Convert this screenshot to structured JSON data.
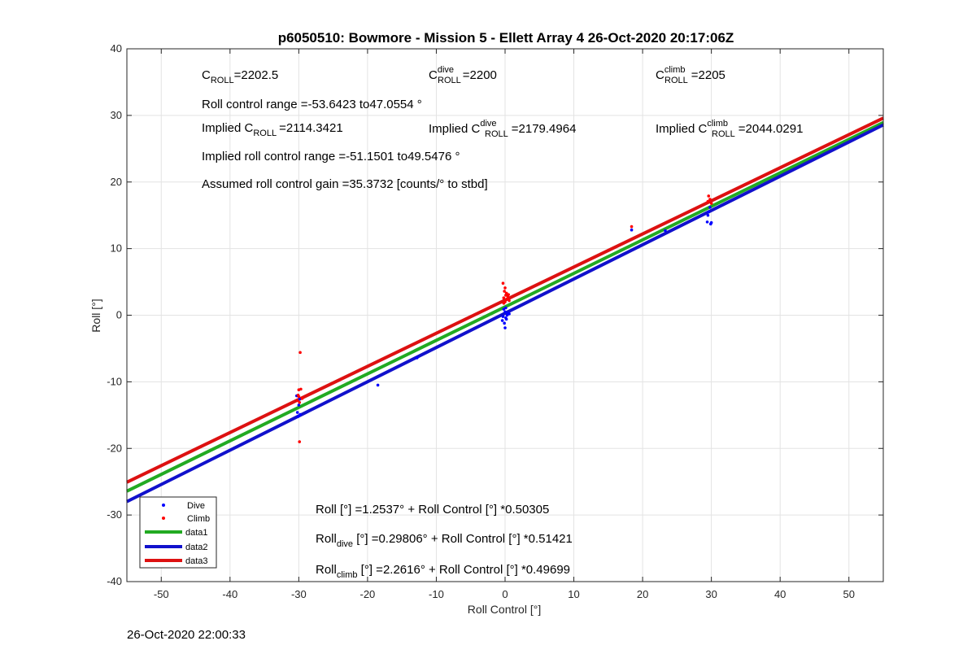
{
  "chart_data": {
    "type": "scatter",
    "title": "p6050510: Bowmore - Mission 5 - Ellett Array 4 26-Oct-2020 20:17:06Z",
    "xlabel": "Roll Control [°]",
    "ylabel": "Roll [°]",
    "xlim": [
      -55,
      55
    ],
    "ylim": [
      -40,
      40
    ],
    "xticks": [
      -50,
      -40,
      -30,
      -20,
      -10,
      0,
      10,
      20,
      30,
      40,
      50
    ],
    "yticks": [
      -40,
      -30,
      -20,
      -10,
      0,
      10,
      20,
      30,
      40
    ],
    "grid": true,
    "legend_position": "bottom-left",
    "series": [
      {
        "name": "Dive",
        "kind": "points",
        "color": "#0000ff",
        "points": [
          [
            -30.2,
            -14.6
          ],
          [
            -30.1,
            -15.2
          ],
          [
            -29.8,
            -14.9
          ],
          [
            -30.0,
            -13.5
          ],
          [
            -29.9,
            -12.6
          ],
          [
            -30.3,
            -12.1
          ],
          [
            -18.5,
            -10.5
          ],
          [
            -12.8,
            -6.4
          ],
          [
            -0.3,
            -0.2
          ],
          [
            0.0,
            0.5
          ],
          [
            0.2,
            -0.6
          ],
          [
            -0.2,
            0.9
          ],
          [
            0.1,
            1.1
          ],
          [
            0.4,
            0.3
          ],
          [
            -0.1,
            -1.2
          ],
          [
            0.0,
            -1.9
          ],
          [
            0.3,
            0.0
          ],
          [
            0.6,
            0.2
          ],
          [
            -0.4,
            -0.8
          ],
          [
            0.1,
            -0.4
          ],
          [
            18.4,
            12.8
          ],
          [
            23.3,
            12.7
          ],
          [
            29.4,
            14.0
          ],
          [
            29.9,
            13.7
          ],
          [
            30.0,
            13.9
          ],
          [
            29.6,
            15.5
          ],
          [
            29.8,
            16.2
          ],
          [
            29.5,
            15.0
          ]
        ]
      },
      {
        "name": "Climb",
        "kind": "points",
        "color": "#ff0000",
        "points": [
          [
            -29.8,
            -5.6
          ],
          [
            -30.0,
            -11.2
          ],
          [
            -29.7,
            -11.1
          ],
          [
            -30.0,
            -12.2
          ],
          [
            -29.5,
            -12.5
          ],
          [
            -30.2,
            -12.8
          ],
          [
            -29.9,
            -13.1
          ],
          [
            -30.1,
            -12.0
          ],
          [
            -29.9,
            -19.0
          ],
          [
            -0.3,
            4.8
          ],
          [
            0.0,
            4.1
          ],
          [
            -0.1,
            3.6
          ],
          [
            0.2,
            3.3
          ],
          [
            0.1,
            3.0
          ],
          [
            0.4,
            2.8
          ],
          [
            -0.2,
            2.6
          ],
          [
            0.3,
            2.4
          ],
          [
            0.6,
            2.2
          ],
          [
            0.0,
            2.0
          ],
          [
            -0.2,
            1.8
          ],
          [
            0.5,
            3.1
          ],
          [
            18.4,
            13.3
          ],
          [
            29.6,
            17.9
          ],
          [
            29.8,
            17.4
          ],
          [
            29.5,
            17.1
          ],
          [
            30.0,
            16.8
          ]
        ]
      },
      {
        "name": "data1",
        "kind": "line",
        "color": "#22aa22",
        "x": [
          -55,
          55
        ],
        "intercept": 1.2537,
        "slope": 0.50305
      },
      {
        "name": "data2",
        "kind": "line",
        "color": "#1111cc",
        "x": [
          -55,
          55
        ],
        "intercept": 0.29806,
        "slope": 0.51421
      },
      {
        "name": "data3",
        "kind": "line",
        "color": "#dd1111",
        "x": [
          -55,
          55
        ],
        "intercept": 2.2616,
        "slope": 0.49699
      }
    ],
    "annotations": {
      "croll": {
        "symbol": "C",
        "sub": "ROLL",
        "value": "=2202.5"
      },
      "croll_dive": {
        "symbol": "C",
        "sup": "dive",
        "sub": "ROLL",
        "value": "=2200"
      },
      "croll_climb": {
        "symbol": "C",
        "sup": "climb",
        "sub": "ROLL",
        "value": "=2205"
      },
      "roll_range": "Roll control range =-53.6423 to47.0554 °",
      "implied_croll": {
        "prefix": "Implied C",
        "sub": "ROLL",
        "value": "=2114.3421"
      },
      "implied_croll_dive": {
        "prefix": "Implied C",
        "sup": "dive",
        "sub": "ROLL",
        "value": "=2179.4964"
      },
      "implied_croll_climb": {
        "prefix": "Implied C",
        "sup": "climb",
        "sub": "ROLL",
        "value": "=2044.0291"
      },
      "implied_range": "Implied roll control range =-51.1501 to49.5476 °",
      "gain": "Assumed roll control gain =35.3732 [counts/° to stbd]",
      "fit_all": "Roll [°] =1.2537° + Roll Control [°] *0.50305",
      "fit_dive": {
        "prefix": "Roll",
        "sub": "dive",
        "rest": " [°] =0.29806° + Roll Control [°] *0.51421"
      },
      "fit_climb": {
        "prefix": "Roll",
        "sub": "climb",
        "rest": " [°] =2.2616° + Roll Control [°] *0.49699"
      }
    }
  },
  "footer": {
    "timestamp": "26-Oct-2020 22:00:33"
  }
}
